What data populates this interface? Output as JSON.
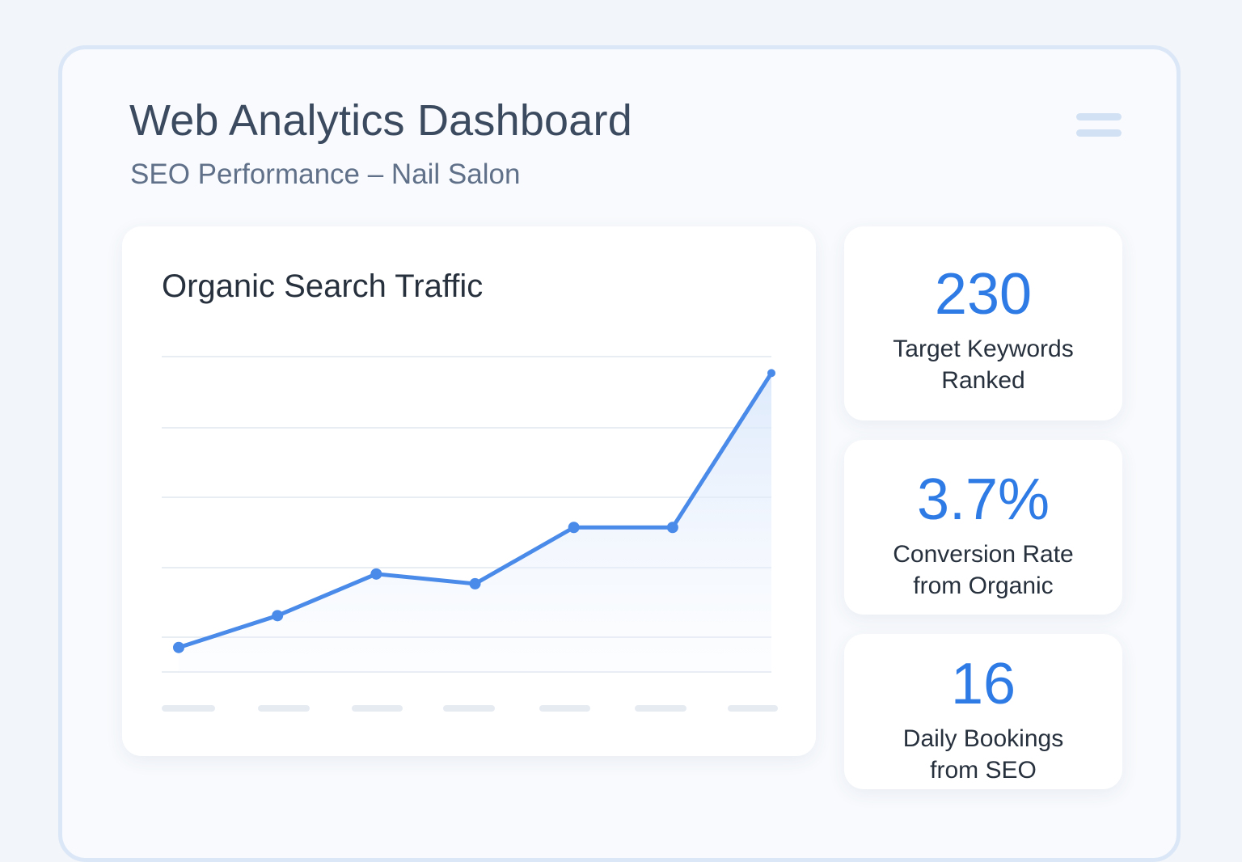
{
  "header": {
    "title": "Web Analytics Dashboard",
    "subtitle": "SEO Performance – Nail Salon",
    "menu_icon": "hamburger-menu-icon"
  },
  "colors": {
    "accent": "#2f7be5",
    "line": "#4a8ae8",
    "text_dark": "#27303d",
    "text_muted": "#5f7088"
  },
  "chart": {
    "title": "Organic Search Traffic"
  },
  "chart_data": {
    "type": "area",
    "title": "Organic Search Traffic",
    "xlabel": "",
    "ylabel": "",
    "x": [
      1,
      2,
      3,
      4,
      5,
      6,
      7
    ],
    "values": [
      10,
      23,
      40,
      36,
      59,
      59,
      122
    ],
    "ylim": [
      0,
      135
    ],
    "grid": true,
    "legend": "none",
    "x_tick_labels_visible": false
  },
  "stats": [
    {
      "value": "230",
      "label_line1": "Target Keywords",
      "label_line2": "Ranked"
    },
    {
      "value": "3.7%",
      "label_line1": "Conversion Rate",
      "label_line2": "from Organic"
    },
    {
      "value": "16",
      "label_line1": "Daily Bookings",
      "label_line2": "from SEO"
    }
  ]
}
